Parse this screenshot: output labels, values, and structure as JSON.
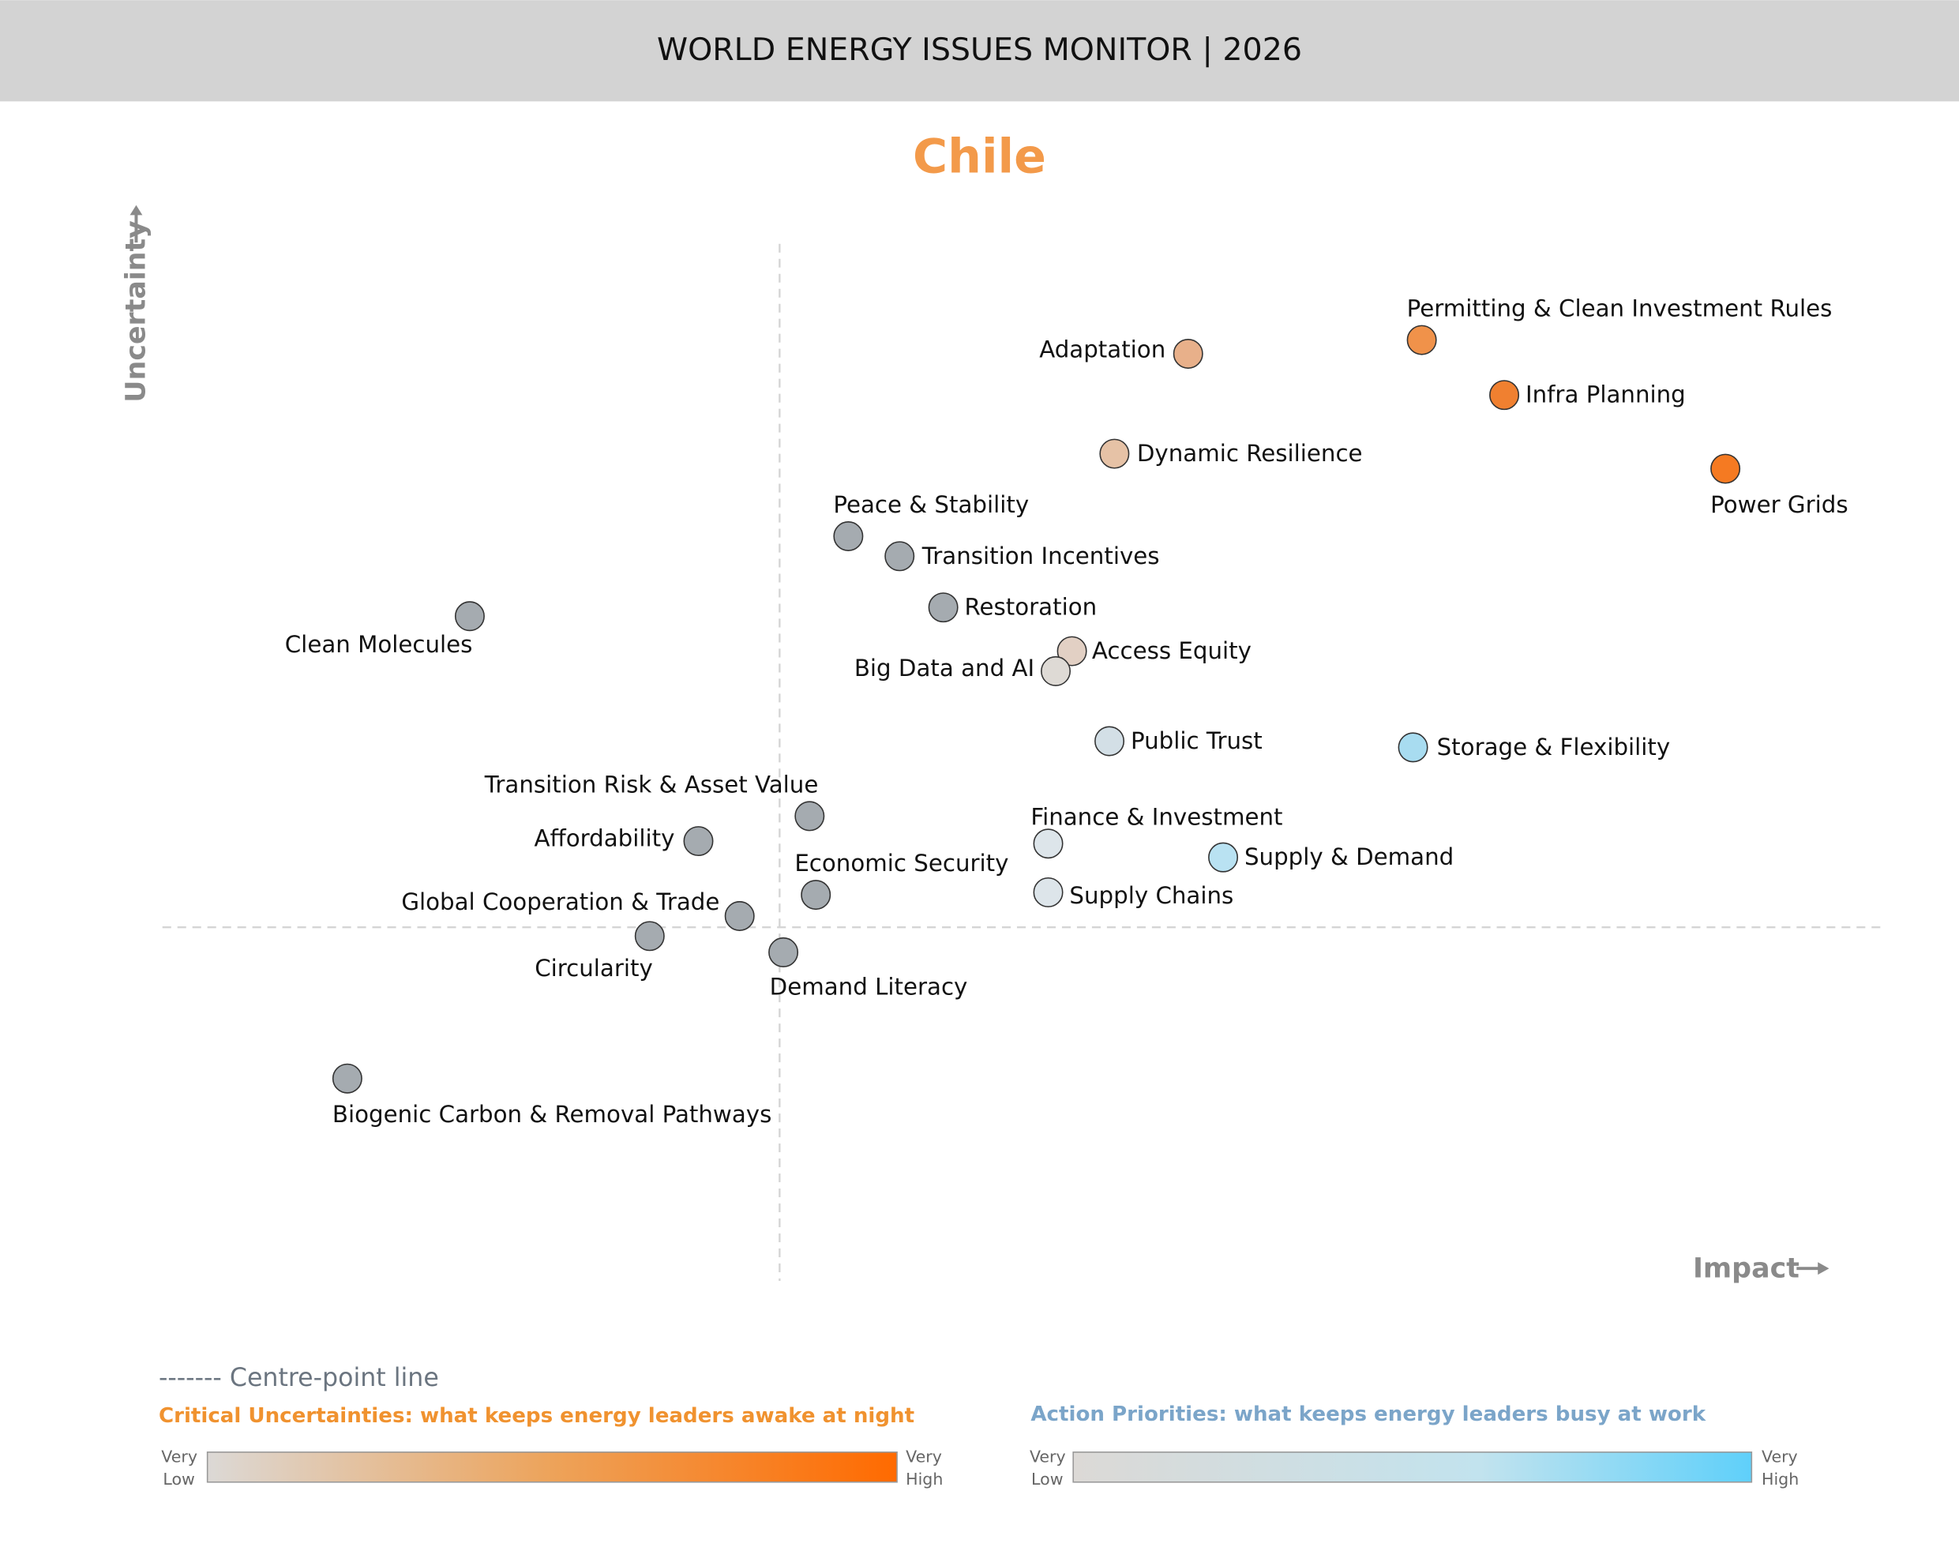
{
  "header": {
    "title": "WORLD ENERGY ISSUES MONITOR | 2026"
  },
  "chart_data": {
    "type": "scatter",
    "title": "Chile",
    "xlabel": "Impact",
    "ylabel": "Uncertainty",
    "grid": false,
    "centre_lines": true,
    "points": [
      {
        "label": "Permitting & Clean Investment Rules",
        "impact": 5.14,
        "uncertainty": 4.7,
        "color": "#f0924a"
      },
      {
        "label": "Adaptation",
        "impact": 3.27,
        "uncertainty": 4.59,
        "color": "#e8b08a"
      },
      {
        "label": "Infra Planning",
        "impact": 5.8,
        "uncertainty": 4.26,
        "color": "#f08030"
      },
      {
        "label": "Dynamic Resilience",
        "impact": 2.68,
        "uncertainty": 3.79,
        "color": "#e6c2a6"
      },
      {
        "label": "Power Grids",
        "impact": 7.57,
        "uncertainty": 3.67,
        "color": "#f57a22"
      },
      {
        "label": "Peace & Stability",
        "impact": 0.55,
        "uncertainty": 3.13,
        "color": "#a5abb0"
      },
      {
        "label": "Transition Incentives",
        "impact": 0.96,
        "uncertainty": 2.97,
        "color": "#a5abb0"
      },
      {
        "label": "Restoration",
        "impact": 1.31,
        "uncertainty": 2.56,
        "color": "#a5abb0"
      },
      {
        "label": "Clean Molecules",
        "impact": -2.48,
        "uncertainty": 2.49,
        "color": "#a5abb0"
      },
      {
        "label": "Access Equity",
        "impact": 2.34,
        "uncertainty": 2.21,
        "color": "#e2d0c4"
      },
      {
        "label": "Big Data and AI",
        "impact": 2.21,
        "uncertainty": 2.05,
        "color": "#dedad5"
      },
      {
        "label": "Public Trust",
        "impact": 2.64,
        "uncertainty": 1.49,
        "color": "#d3dfe6"
      },
      {
        "label": "Storage & Flexibility",
        "impact": 5.07,
        "uncertainty": 1.44,
        "color": "#a8dcf0"
      },
      {
        "label": "Transition Risk & Asset Value",
        "impact": 0.24,
        "uncertainty": 0.89,
        "color": "#a5abb0"
      },
      {
        "label": "Affordability",
        "impact": -0.65,
        "uncertainty": 0.69,
        "color": "#a5abb0"
      },
      {
        "label": "Finance & Investment",
        "impact": 2.15,
        "uncertainty": 0.67,
        "color": "#dde5ea"
      },
      {
        "label": "Supply & Demand",
        "impact": 3.55,
        "uncertainty": 0.56,
        "color": "#b9e2f2"
      },
      {
        "label": "Economic Security",
        "impact": 0.29,
        "uncertainty": 0.26,
        "color": "#a5abb0"
      },
      {
        "label": "Supply Chains",
        "impact": 2.15,
        "uncertainty": 0.28,
        "color": "#dde5ea"
      },
      {
        "label": "Global Cooperation & Trade",
        "impact": -0.32,
        "uncertainty": 0.09,
        "color": "#a5abb0"
      },
      {
        "label": "Circularity",
        "impact": -1.04,
        "uncertainty": -0.07,
        "color": "#a5abb0"
      },
      {
        "label": "Demand Literacy",
        "impact": 0.03,
        "uncertainty": -0.2,
        "color": "#a5abb0"
      },
      {
        "label": "Biogenic Carbon & Removal Pathways",
        "impact": -3.46,
        "uncertainty": -1.21,
        "color": "#a5abb0"
      }
    ]
  },
  "legend": {
    "centre_line": "------- Centre-point line",
    "critical": {
      "title": "Critical Uncertainties: what keeps energy leaders awake at night",
      "low": [
        "Very",
        "Low"
      ],
      "high": [
        "Very",
        "High"
      ],
      "color_low": "#dcd9d6",
      "color_high": "#ff6a00"
    },
    "action": {
      "title": "Action Priorities: what keeps energy leaders busy at work",
      "low": [
        "Very",
        "Low"
      ],
      "high": [
        "Very",
        "High"
      ],
      "color_low": "#dcd9d6",
      "color_high": "#5fd0fa"
    }
  },
  "colors": {
    "title": "#f39a4a",
    "axis": "#8a8a8a",
    "header_bg": "#d3d3d3"
  }
}
